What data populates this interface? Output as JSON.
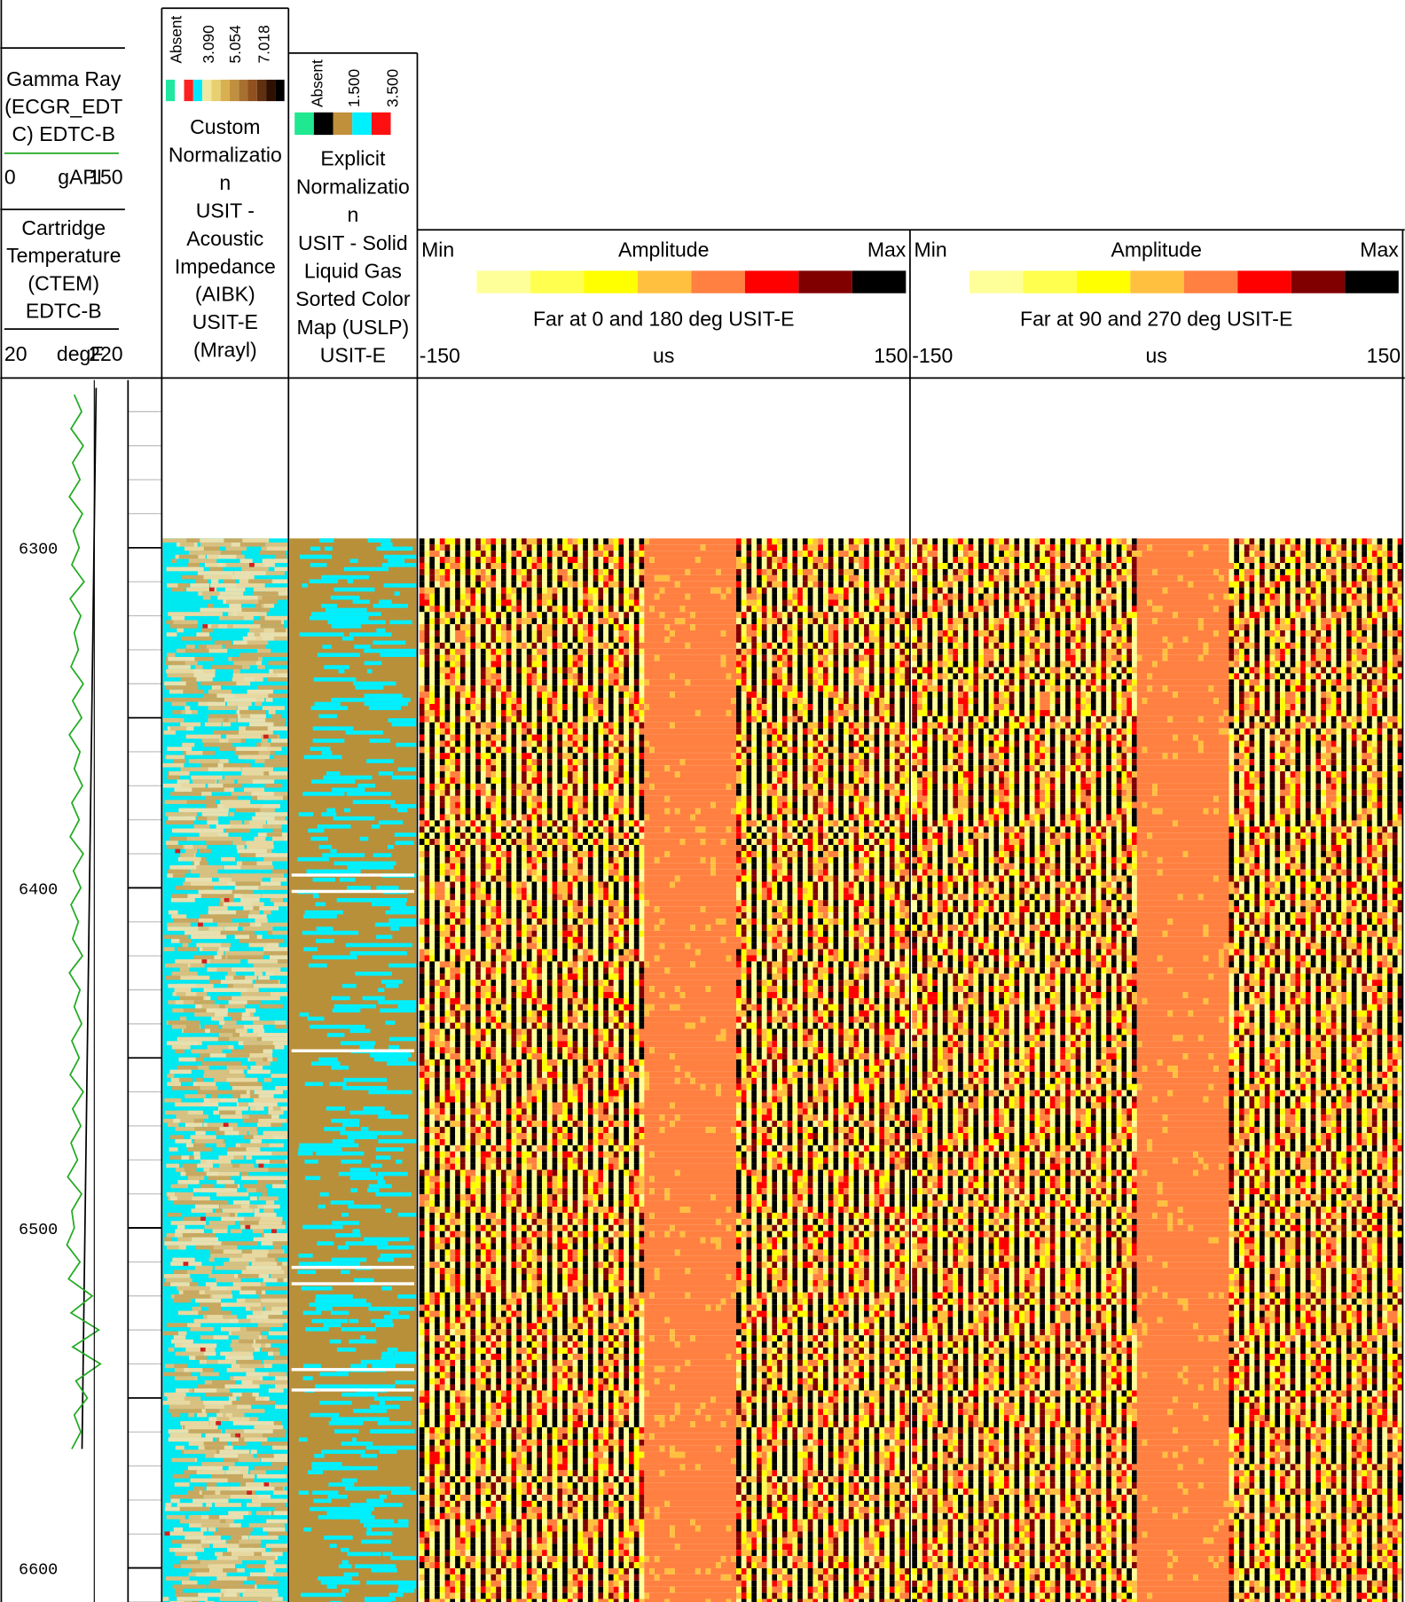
{
  "log": {
    "gamma": {
      "name": [
        "Gamma Ray",
        "(ECGR_EDT",
        "C) EDTC-B"
      ],
      "unit": "gAPI",
      "scale": [
        0,
        150
      ],
      "color": "#22aa22",
      "depth": [
        6255,
        6260,
        6265,
        6270,
        6275,
        6280,
        6285,
        6290,
        6295,
        6300,
        6305,
        6310,
        6315,
        6320,
        6325,
        6330,
        6335,
        6340,
        6345,
        6350,
        6355,
        6360,
        6365,
        6370,
        6375,
        6380,
        6385,
        6390,
        6395,
        6400,
        6405,
        6410,
        6415,
        6420,
        6425,
        6430,
        6435,
        6440,
        6445,
        6450,
        6455,
        6460,
        6465,
        6470,
        6475,
        6480,
        6485,
        6490,
        6495,
        6500,
        6505,
        6510,
        6515,
        6520,
        6525,
        6530,
        6535,
        6540,
        6545,
        6550,
        6555,
        6560,
        6565
      ],
      "values": [
        88,
        97,
        84,
        99,
        86,
        95,
        82,
        98,
        87,
        94,
        85,
        100,
        83,
        96,
        88,
        93,
        84,
        99,
        86,
        97,
        82,
        95,
        88,
        98,
        85,
        94,
        83,
        99,
        87,
        96,
        84,
        93,
        86,
        98,
        82,
        95,
        88,
        97,
        85,
        94,
        83,
        99,
        86,
        96,
        84,
        92,
        80,
        97,
        85,
        88,
        79,
        95,
        81,
        110,
        84,
        118,
        86,
        120,
        90,
        104,
        88,
        96,
        85
      ]
    },
    "temp": {
      "name": [
        "Cartridge",
        "Temperature",
        "(CTEM)",
        "EDTC-B"
      ],
      "unit": "degF",
      "scale": [
        20,
        220
      ],
      "color": "#000000",
      "depth": [
        6253,
        6565
      ],
      "values": [
        173,
        150
      ]
    },
    "depth_range": [
      6250.7,
      6610
    ],
    "depth_ticks": [
      6300,
      6400,
      6500,
      6600
    ],
    "aibk": {
      "legend": [
        "Absent",
        "3.090",
        "5.054",
        "7.018"
      ],
      "colors": [
        "#20e8a0",
        "#ffffff",
        "#ff2020",
        "#00e8ff",
        "#f0e8a0",
        "#e8d070",
        "#d8b050",
        "#c09040",
        "#a87030",
        "#905020",
        "#603010",
        "#301000",
        "#000000"
      ],
      "title": [
        "Custom",
        "Normalizatio",
        "n",
        "USIT -",
        "Acoustic",
        "Impedance",
        "(AIBK)",
        "USIT-E",
        "(Mrayl)"
      ]
    },
    "uslp": {
      "legend": [
        "Absent",
        "1.500",
        "3.500"
      ],
      "colors": [
        "#20e890",
        "#000000",
        "#c0903a",
        "#00f0ff",
        "#ff1010"
      ],
      "title": [
        "Explicit",
        "Normalizatio",
        "n",
        "USIT - Solid",
        "Liquid Gas",
        "Sorted Color",
        "Map (USLP)",
        "USIT-E"
      ]
    },
    "amplitude_colors": [
      "#ffff9a",
      "#ffff50",
      "#ffff00",
      "#ffc040",
      "#ff8040",
      "#ff0000",
      "#800000",
      "#000000"
    ],
    "waves": [
      {
        "min": "Min",
        "label": "Amplitude",
        "max": "Max",
        "name": "Far at 0 and 180 deg USIT-E",
        "scale": [
          -150,
          150
        ],
        "unit": "us"
      },
      {
        "min": "Min",
        "label": "Amplitude",
        "max": "Max",
        "name": "Far at 90 and 270 deg USIT-E",
        "scale": [
          -150,
          150
        ],
        "unit": "us"
      }
    ]
  }
}
